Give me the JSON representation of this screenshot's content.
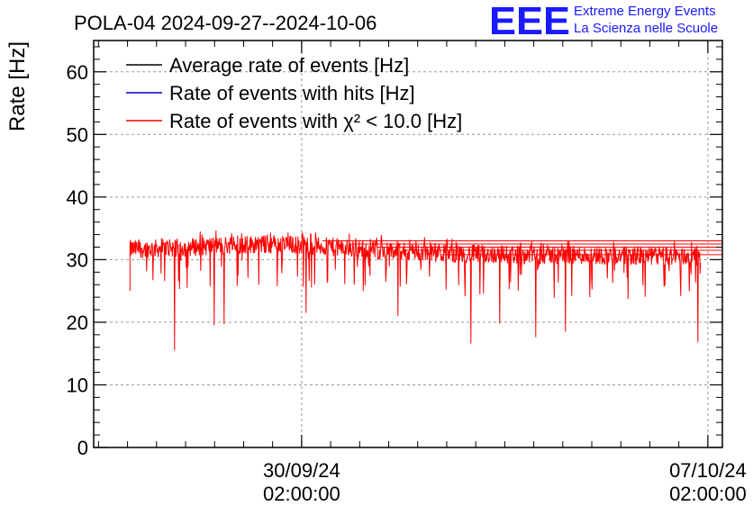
{
  "header": {
    "title": "POLA-04 2024-09-27--2024-10-06",
    "logo_text": "EEE",
    "logo_line1": "Extreme Energy Events",
    "logo_line2": "La Scienza nelle Scuole"
  },
  "colors": {
    "average": "#000000",
    "hits": "#0000cc",
    "chi2": "#ff0000",
    "grid": "#999999",
    "logo": "#1a1aff"
  },
  "chart_data": {
    "type": "line",
    "title": "POLA-04 2024-09-27--2024-10-06",
    "xlabel": "",
    "ylabel": "Rate [Hz]",
    "ylim": [
      0,
      65
    ],
    "y_ticks": [
      0,
      10,
      20,
      30,
      40,
      50,
      60
    ],
    "x_ticks": [
      {
        "date": "30/09/24",
        "time": "02:00:00"
      },
      {
        "date": "07/10/24",
        "time": "02:00:00"
      }
    ],
    "x_range": [
      "2024-09-26 12:00:00",
      "2024-10-07 08:00:00"
    ],
    "grid": true,
    "legend_position": "top-left",
    "series": [
      {
        "name": "Average rate of events [Hz]",
        "color": "#000000"
      },
      {
        "name": "Rate of events with hits [Hz]",
        "color": "#0000cc"
      },
      {
        "name": "Rate of events with χ² < 10.0 [Hz]",
        "color": "#ff0000",
        "x_start": "2024-09-27 03:00:00",
        "x_end": "2024-10-06 23:00:00",
        "baseline_start": 31.5,
        "baseline_end": 30.5,
        "typical_min": 29,
        "typical_max": 34,
        "dips": [
          {
            "x": "2024-09-27 21:30:00",
            "y": 15.5
          },
          {
            "x": "2024-09-28 14:00:00",
            "y": 19.5
          },
          {
            "x": "2024-09-28 18:00:00",
            "y": 19.7
          },
          {
            "x": "2024-09-30 04:00:00",
            "y": 21.5
          },
          {
            "x": "2024-10-01 18:00:00",
            "y": 21.0
          },
          {
            "x": "2024-10-03 00:00:00",
            "y": 16.6
          },
          {
            "x": "2024-10-03 12:00:00",
            "y": 19.8
          },
          {
            "x": "2024-10-04 03:00:00",
            "y": 17.6
          },
          {
            "x": "2024-10-04 15:00:00",
            "y": 18.5
          },
          {
            "x": "2024-10-06 22:00:00",
            "y": 16.8
          }
        ]
      }
    ]
  }
}
